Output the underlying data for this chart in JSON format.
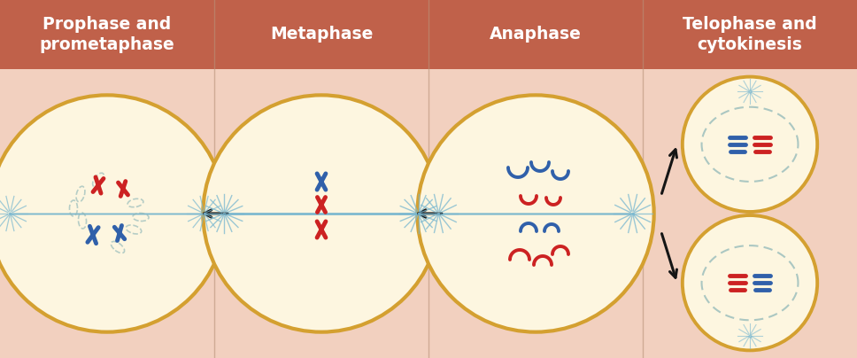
{
  "background_color": "#f2d0bf",
  "header_color": "#c0614a",
  "header_text_color": "#ffffff",
  "col_divider_color": "#b8937a",
  "header_titles": [
    "Prophase and\nprometaphase",
    "Metaphase",
    "Anaphase",
    "Telophase and\ncytokinesis"
  ],
  "header_fontsize": 13.5,
  "header_fontweight": "bold",
  "cell_fill": "#fdf6e0",
  "cell_border": "#d4a030",
  "spindle_color": "#7ab8d0",
  "chromosome_blue": "#3060aa",
  "chromosome_red": "#cc2222",
  "nuclear_envelope_color": "#90b8b8",
  "arrow_color": "#151515",
  "fig_width": 9.68,
  "fig_height": 4.04,
  "dpi": 100
}
